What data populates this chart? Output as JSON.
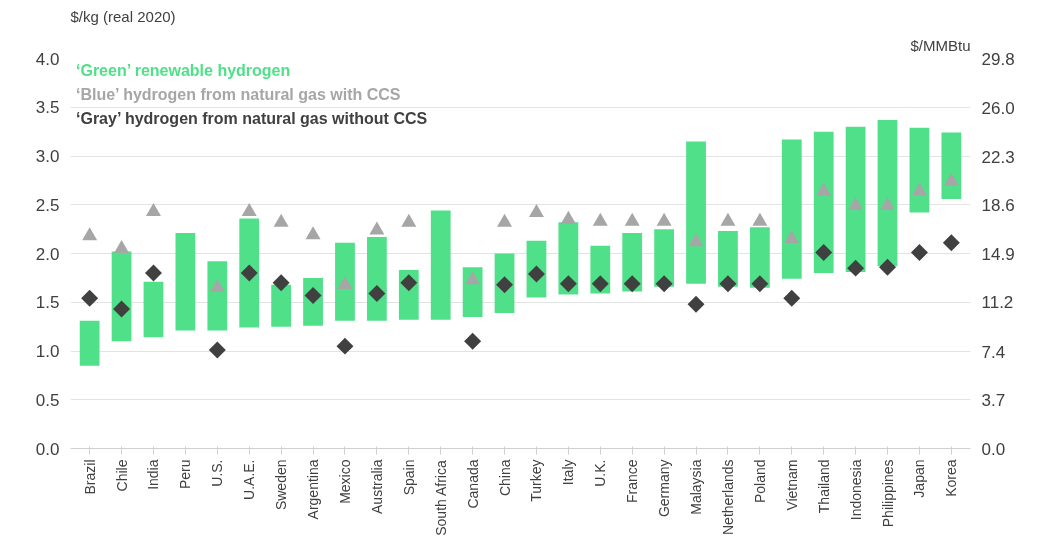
{
  "chart_data": {
    "type": "bar",
    "ylabel": "$/kg (real 2020)",
    "y2label": "$/MMBtu",
    "categories": [
      "Brazil",
      "Chile",
      "India",
      "Peru",
      "U.S.",
      "U.A.E.",
      "Sweden",
      "Argentina",
      "Mexico",
      "Australia",
      "Spain",
      "South Africa",
      "Canada",
      "China",
      "Turkey",
      "Italy",
      "U.K.",
      "France",
      "Germany",
      "Malaysia",
      "Netherlands",
      "Poland",
      "Vietnam",
      "Thailand",
      "Indonesia",
      "Philippines",
      "Japan",
      "Korea"
    ],
    "series": [
      {
        "name": "‘Green’ renewable hydrogen",
        "color": "#50e08a",
        "base": [
          0.85,
          1.1,
          1.14,
          1.21,
          1.21,
          1.24,
          1.25,
          1.26,
          1.31,
          1.31,
          1.32,
          1.32,
          1.35,
          1.39,
          1.55,
          1.58,
          1.59,
          1.61,
          1.66,
          1.69,
          1.66,
          1.65,
          1.74,
          1.8,
          1.81,
          1.87,
          2.42,
          2.56
        ],
        "values": [
          0.46,
          0.92,
          0.57,
          1.0,
          0.71,
          1.12,
          0.43,
          0.49,
          0.8,
          0.86,
          0.51,
          1.12,
          0.51,
          0.61,
          0.58,
          0.74,
          0.49,
          0.6,
          0.59,
          1.46,
          0.57,
          0.62,
          1.43,
          1.45,
          1.49,
          1.5,
          0.87,
          0.68
        ]
      },
      {
        "name": "‘Blue’ hydrogen from natural gas with CCS",
        "type": "scatter",
        "marker": "triangle",
        "color": "#a6a6a6",
        "values": [
          2.18,
          2.05,
          2.43,
          null,
          1.65,
          2.43,
          2.32,
          2.19,
          1.68,
          2.24,
          2.32,
          null,
          1.73,
          2.32,
          2.42,
          2.35,
          2.33,
          2.33,
          2.33,
          2.12,
          2.33,
          2.33,
          2.15,
          2.64,
          2.49,
          2.49,
          2.64,
          2.74
        ]
      },
      {
        "name": "‘Gray’ hydrogen from natural gas without CCS",
        "type": "scatter",
        "marker": "diamond",
        "color": "#404040",
        "values": [
          1.54,
          1.43,
          1.8,
          null,
          1.01,
          1.8,
          1.7,
          1.57,
          1.05,
          1.59,
          1.7,
          null,
          1.1,
          1.68,
          1.79,
          1.69,
          1.69,
          1.69,
          1.69,
          1.48,
          1.69,
          1.69,
          1.54,
          2.01,
          1.85,
          1.86,
          2.01,
          2.11
        ]
      }
    ],
    "ylim": [
      0,
      4.0
    ],
    "yticks": [
      {
        "value": 0,
        "label": "0.0"
      },
      0.5,
      {
        "value": 1,
        "label": "1.0"
      },
      1.5,
      {
        "value": 2,
        "label": "2.0"
      },
      2.5,
      {
        "value": 3,
        "label": "3.0"
      },
      3.5,
      {
        "value": 4,
        "label": "4.0"
      }
    ],
    "y2lim": [
      0,
      29.8
    ],
    "y2ticks": [
      {
        "value": 0,
        "label": "0.0"
      },
      3.7,
      7.4,
      11.2,
      14.9,
      18.6,
      22.3,
      {
        "value": 26,
        "label": "26.0"
      },
      {
        "value": 29.8,
        "label": "29.8"
      }
    ],
    "grid": "y",
    "legend": "top left"
  }
}
